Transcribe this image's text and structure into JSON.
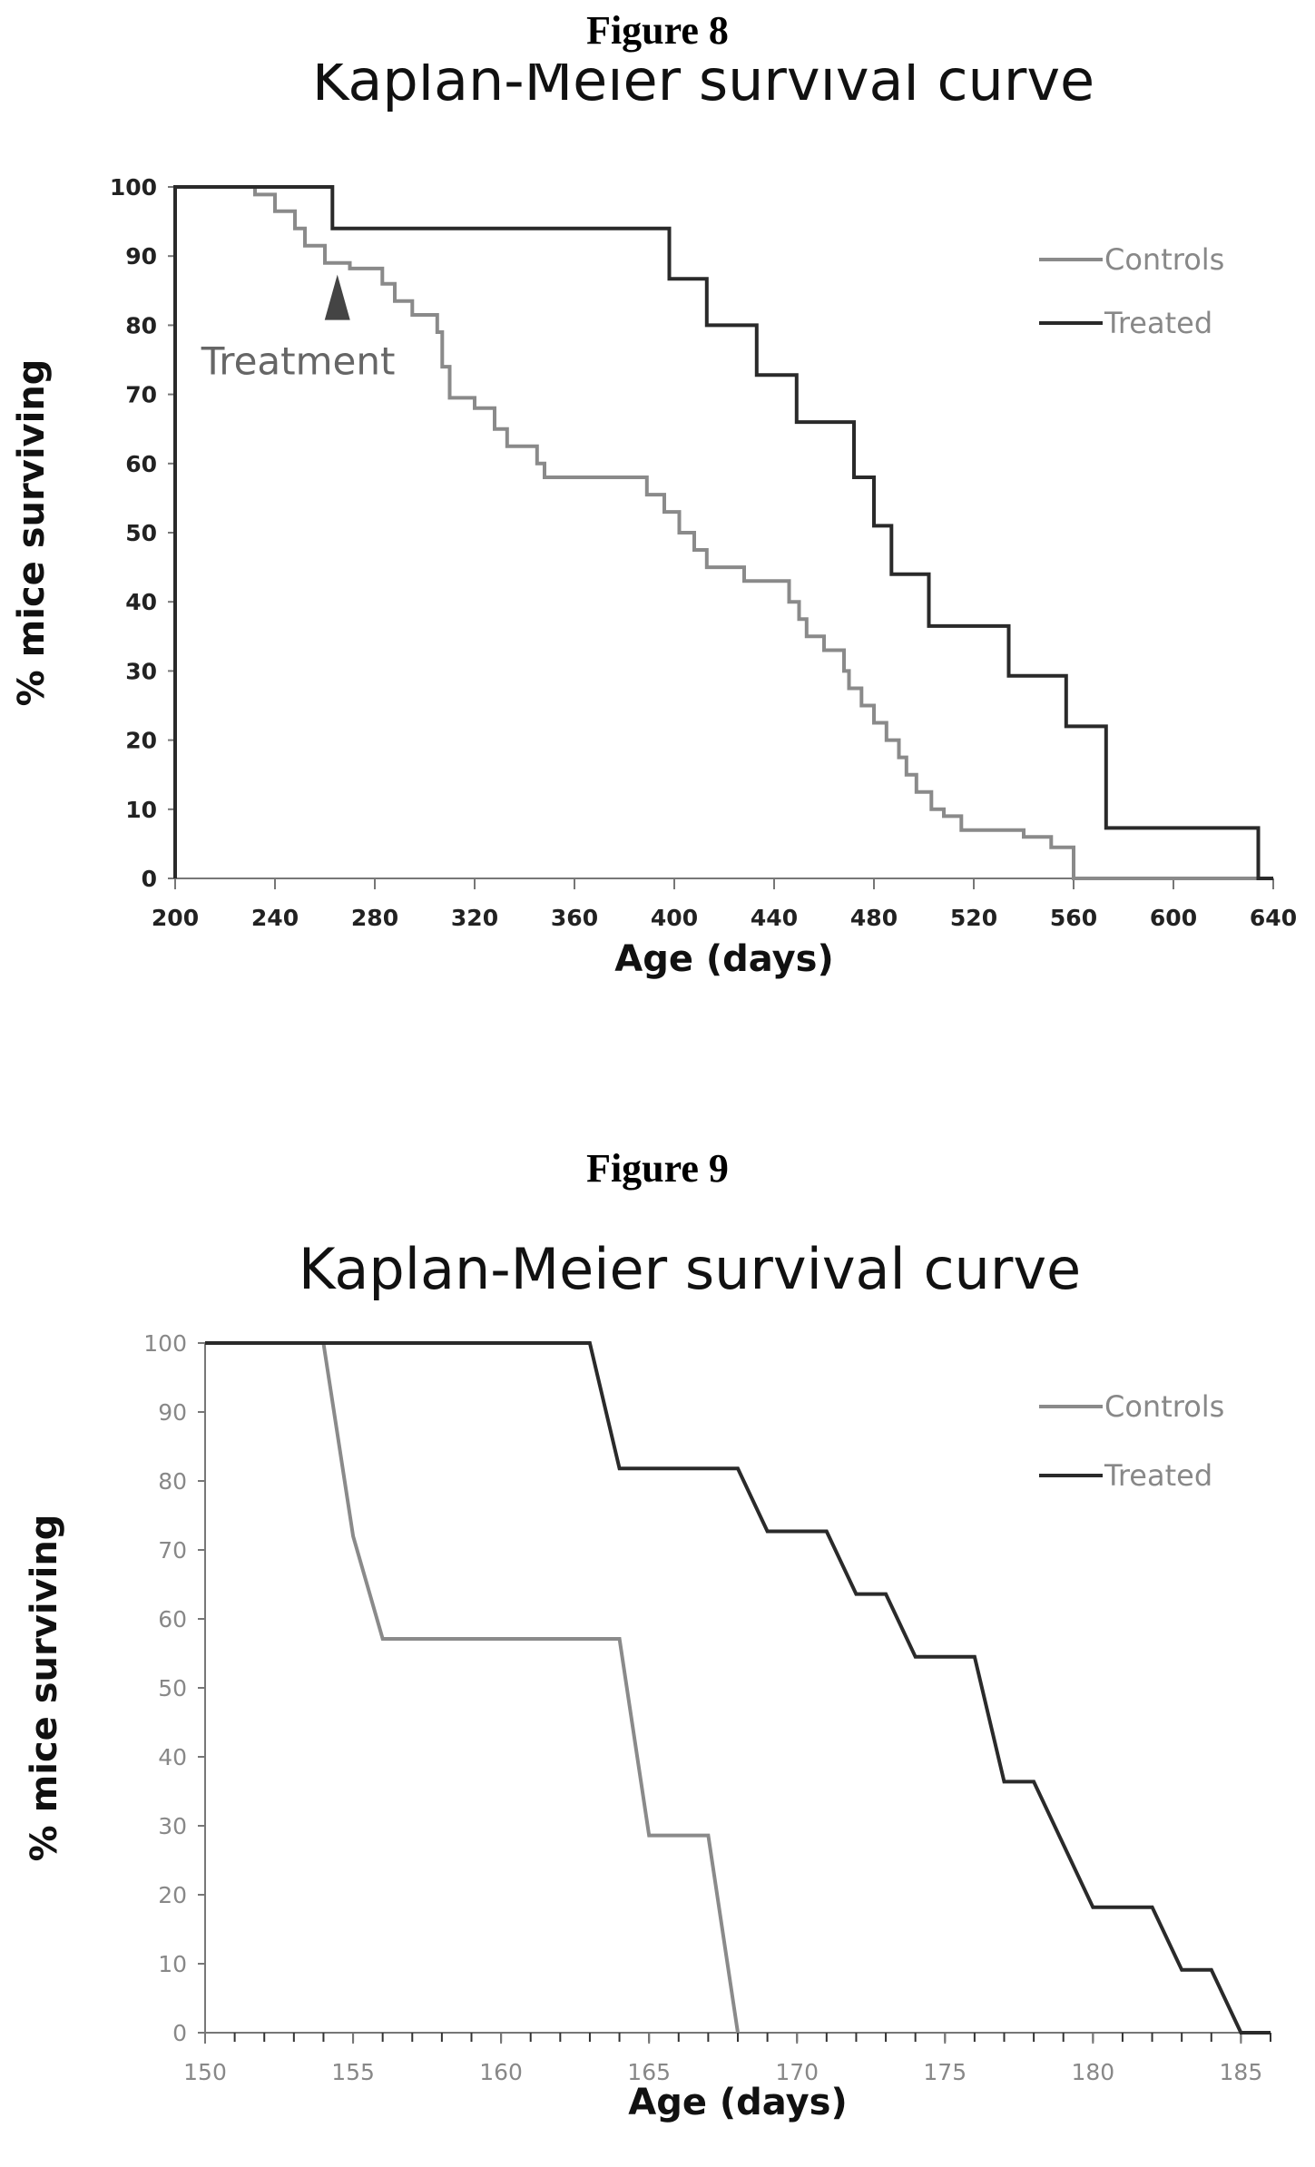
{
  "figures": [
    {
      "label": "Figure 8"
    },
    {
      "label": "Figure 9"
    }
  ],
  "chart_data": [
    {
      "type": "line",
      "step": true,
      "title": "Kaplan-Meier survival curve",
      "xlabel": "Age (days)",
      "ylabel": "% mice surviving",
      "xlim": [
        200,
        640
      ],
      "ylim": [
        0,
        100
      ],
      "xticks": [
        200,
        240,
        280,
        320,
        360,
        400,
        440,
        480,
        520,
        560,
        600,
        640
      ],
      "yticks": [
        0,
        10,
        20,
        30,
        40,
        50,
        60,
        70,
        80,
        90,
        100
      ],
      "legend_position": "top-right",
      "annotation": {
        "text": "Treatment",
        "x": 265,
        "y": 86
      },
      "series": [
        {
          "name": "Controls",
          "color": "#8a8a8a",
          "points": [
            [
              200,
              0
            ],
            [
              200,
              100
            ],
            [
              232,
              100
            ],
            [
              232,
              98.9
            ],
            [
              240,
              98.9
            ],
            [
              240,
              96.5
            ],
            [
              248,
              96.5
            ],
            [
              248,
              94
            ],
            [
              252,
              94
            ],
            [
              252,
              91.5
            ],
            [
              260,
              91.5
            ],
            [
              260,
              89
            ],
            [
              270,
              89
            ],
            [
              270,
              88.2
            ],
            [
              283,
              88.2
            ],
            [
              283,
              86
            ],
            [
              288,
              86
            ],
            [
              288,
              83.5
            ],
            [
              295,
              83.5
            ],
            [
              295,
              81.5
            ],
            [
              305,
              81.5
            ],
            [
              305,
              79
            ],
            [
              307,
              79
            ],
            [
              307,
              74
            ],
            [
              310,
              74
            ],
            [
              310,
              69.5
            ],
            [
              320,
              69.5
            ],
            [
              320,
              68
            ],
            [
              328,
              68
            ],
            [
              328,
              65
            ],
            [
              333,
              65
            ],
            [
              333,
              62.5
            ],
            [
              345,
              62.5
            ],
            [
              345,
              60
            ],
            [
              348,
              60
            ],
            [
              348,
              58
            ],
            [
              389,
              58
            ],
            [
              389,
              55.5
            ],
            [
              396,
              55.5
            ],
            [
              396,
              53
            ],
            [
              402,
              53
            ],
            [
              402,
              50
            ],
            [
              408,
              50
            ],
            [
              408,
              47.5
            ],
            [
              413,
              47.5
            ],
            [
              413,
              45
            ],
            [
              428,
              45
            ],
            [
              428,
              43
            ],
            [
              446,
              43
            ],
            [
              446,
              40
            ],
            [
              450,
              40
            ],
            [
              450,
              37.5
            ],
            [
              453,
              37.5
            ],
            [
              453,
              35
            ],
            [
              460,
              35
            ],
            [
              460,
              33
            ],
            [
              468,
              33
            ],
            [
              468,
              30
            ],
            [
              470,
              30
            ],
            [
              470,
              27.5
            ],
            [
              475,
              27.5
            ],
            [
              475,
              25
            ],
            [
              480,
              25
            ],
            [
              480,
              22.5
            ],
            [
              485,
              22.5
            ],
            [
              485,
              20
            ],
            [
              490,
              20
            ],
            [
              490,
              17.5
            ],
            [
              493,
              17.5
            ],
            [
              493,
              15
            ],
            [
              497,
              15
            ],
            [
              497,
              12.5
            ],
            [
              503,
              12.5
            ],
            [
              503,
              10
            ],
            [
              508,
              10
            ],
            [
              508,
              9
            ],
            [
              515,
              9
            ],
            [
              515,
              7
            ],
            [
              540,
              7
            ],
            [
              540,
              6
            ],
            [
              551,
              6
            ],
            [
              551,
              4.5
            ],
            [
              560,
              4.5
            ],
            [
              560,
              0
            ],
            [
              640,
              0
            ]
          ]
        },
        {
          "name": "Treated",
          "color": "#2a2a2a",
          "points": [
            [
              200,
              0
            ],
            [
              200,
              100
            ],
            [
              263,
              100
            ],
            [
              263,
              94
            ],
            [
              398,
              94
            ],
            [
              398,
              86.7
            ],
            [
              413,
              86.7
            ],
            [
              413,
              80
            ],
            [
              433,
              80
            ],
            [
              433,
              72.8
            ],
            [
              449,
              72.8
            ],
            [
              449,
              66
            ],
            [
              472,
              66
            ],
            [
              472,
              58
            ],
            [
              480,
              58
            ],
            [
              480,
              51
            ],
            [
              487,
              51
            ],
            [
              487,
              44
            ],
            [
              502,
              44
            ],
            [
              502,
              36.5
            ],
            [
              534,
              36.5
            ],
            [
              534,
              29.3
            ],
            [
              557,
              29.3
            ],
            [
              557,
              22
            ],
            [
              573,
              22
            ],
            [
              573,
              7.3
            ],
            [
              634,
              7.3
            ],
            [
              634,
              0
            ],
            [
              640,
              0
            ]
          ]
        }
      ]
    },
    {
      "type": "line",
      "title": "Kaplan-Meier survival curve",
      "xlabel": "Age (days)",
      "ylabel": "% mice surviving",
      "xlim": [
        150,
        186
      ],
      "ylim": [
        0,
        100
      ],
      "xticks": [
        150,
        155,
        160,
        165,
        170,
        175,
        180,
        185
      ],
      "yticks": [
        0,
        10,
        20,
        30,
        40,
        50,
        60,
        70,
        80,
        90,
        100
      ],
      "legend_position": "top-right",
      "series": [
        {
          "name": "Controls",
          "color": "#8a8a8a",
          "points": [
            [
              150,
              100
            ],
            [
              154,
              100
            ],
            [
              155,
              72
            ],
            [
              156,
              57.1
            ],
            [
              164,
              57.1
            ],
            [
              165,
              28.6
            ],
            [
              167,
              28.6
            ],
            [
              168,
              0
            ]
          ]
        },
        {
          "name": "Treated",
          "color": "#2a2a2a",
          "points": [
            [
              150,
              100
            ],
            [
              163,
              100
            ],
            [
              164,
              81.8
            ],
            [
              168,
              81.8
            ],
            [
              169,
              72.7
            ],
            [
              171,
              72.7
            ],
            [
              172,
              63.6
            ],
            [
              173,
              63.6
            ],
            [
              174,
              54.5
            ],
            [
              176,
              54.5
            ],
            [
              177,
              36.4
            ],
            [
              178,
              36.4
            ],
            [
              180,
              18.2
            ],
            [
              182,
              18.2
            ],
            [
              183,
              9.1
            ],
            [
              184,
              9.1
            ],
            [
              185,
              0
            ],
            [
              186,
              0
            ]
          ]
        }
      ]
    }
  ]
}
